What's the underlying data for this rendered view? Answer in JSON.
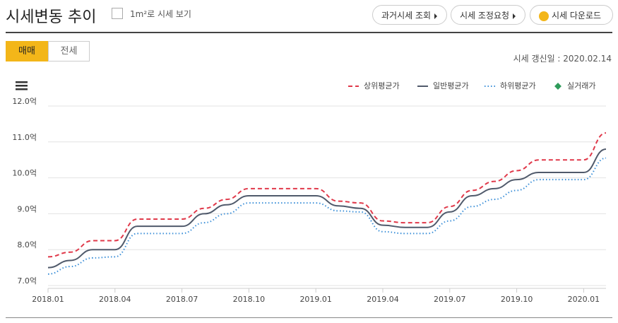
{
  "header": {
    "title": "시세변동 추이",
    "checkbox_label": "1m²로 시세 보기",
    "buttons": [
      "과거시세 조회",
      "시세 조정요청",
      "시세 다운로드"
    ]
  },
  "tabs": [
    "매매",
    "전세"
  ],
  "update_date": "시세 갱신일 : 2020.02.14",
  "chart_data": {
    "type": "line",
    "categories": [
      "2018.01",
      null,
      null,
      "2018.04",
      null,
      null,
      "2018.07",
      null,
      null,
      "2018.10",
      null,
      null,
      "2019.01",
      null,
      null,
      "2019.04",
      null,
      null,
      "2019.07",
      null,
      null,
      "2019.10",
      null,
      null,
      "2020.01",
      null
    ],
    "series": [
      {
        "name": "상위평균가",
        "color": "#e0394a",
        "style": "dashed",
        "values": [
          7.8,
          7.93,
          8.25,
          8.25,
          8.85,
          8.85,
          8.85,
          9.15,
          9.4,
          9.7,
          9.7,
          9.7,
          9.7,
          9.35,
          9.3,
          8.8,
          8.75,
          8.75,
          9.2,
          9.65,
          9.9,
          10.2,
          10.5,
          10.5,
          10.5,
          11.25
        ]
      },
      {
        "name": "일반평균가",
        "color": "#505a6b",
        "style": "solid",
        "values": [
          7.5,
          7.7,
          8.0,
          8.0,
          8.65,
          8.65,
          8.65,
          9.0,
          9.25,
          9.5,
          9.5,
          9.5,
          9.5,
          9.22,
          9.15,
          8.68,
          8.62,
          8.62,
          9.05,
          9.5,
          9.7,
          9.95,
          10.15,
          10.15,
          10.15,
          10.8
        ]
      },
      {
        "name": "하위평균가",
        "color": "#3b8fd8",
        "style": "dotted",
        "values": [
          7.32,
          7.53,
          7.77,
          7.8,
          8.45,
          8.45,
          8.45,
          8.75,
          9.0,
          9.3,
          9.3,
          9.3,
          9.3,
          9.08,
          9.05,
          8.5,
          8.45,
          8.45,
          8.8,
          9.2,
          9.4,
          9.65,
          9.95,
          9.95,
          9.95,
          10.55
        ]
      },
      {
        "name": "실거래가",
        "color": "#2e9b5a",
        "style": "marker",
        "values": [
          null,
          null,
          null,
          null,
          null,
          null,
          null,
          null,
          null,
          null,
          null,
          null,
          null,
          null,
          null,
          null,
          null,
          null,
          null,
          null,
          null,
          null,
          null,
          null,
          null,
          null
        ]
      }
    ],
    "ylim": [
      7,
      12
    ],
    "yticks": [
      {
        "value": 7,
        "label": "7.0억"
      },
      {
        "value": 8,
        "label": "8.0억"
      },
      {
        "value": 9,
        "label": "9.0억"
      },
      {
        "value": 10,
        "label": "10.0억"
      },
      {
        "value": 11,
        "label": "11.0억"
      },
      {
        "value": 12,
        "label": "12.0억"
      }
    ],
    "grid": true
  }
}
